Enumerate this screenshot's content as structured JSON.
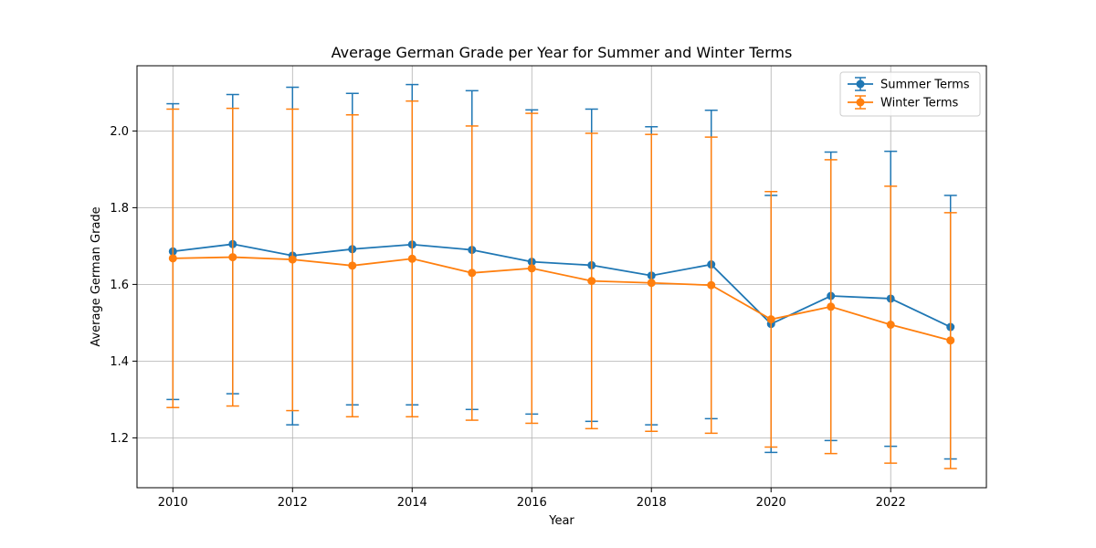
{
  "chart_data": {
    "type": "line",
    "title": "Average German Grade per Year for Summer and Winter Terms",
    "xlabel": "Year",
    "ylabel": "Average German Grade",
    "xlim": [
      2009.4,
      2023.6
    ],
    "ylim": [
      1.07,
      2.17
    ],
    "x_ticks": [
      2010,
      2012,
      2014,
      2016,
      2018,
      2020,
      2022
    ],
    "y_ticks": [
      1.2,
      1.4,
      1.6,
      1.8,
      2.0
    ],
    "y_tick_labels": [
      "1.2",
      "1.4",
      "1.6",
      "1.8",
      "2.0"
    ],
    "grid": true,
    "legend_position": "top-right",
    "x": [
      2010,
      2011,
      2012,
      2013,
      2014,
      2015,
      2016,
      2017,
      2018,
      2019,
      2020,
      2021,
      2022,
      2023
    ],
    "series": [
      {
        "name": "Summer Terms",
        "color": "#1f77b4",
        "marker": "circle",
        "values": [
          1.686,
          1.705,
          1.675,
          1.692,
          1.704,
          1.69,
          1.659,
          1.65,
          1.623,
          1.652,
          1.497,
          1.57,
          1.563,
          1.489
        ],
        "error_lower": [
          1.3,
          1.315,
          1.234,
          1.286,
          1.286,
          1.274,
          1.262,
          1.243,
          1.234,
          1.25,
          1.162,
          1.193,
          1.178,
          1.145
        ],
        "error_upper": [
          2.071,
          2.095,
          2.114,
          2.098,
          2.121,
          2.105,
          2.055,
          2.057,
          2.011,
          2.054,
          1.832,
          1.945,
          1.947,
          1.832
        ]
      },
      {
        "name": "Winter Terms",
        "color": "#ff7f0e",
        "marker": "circle",
        "values": [
          1.668,
          1.671,
          1.665,
          1.649,
          1.667,
          1.63,
          1.642,
          1.609,
          1.604,
          1.598,
          1.509,
          1.542,
          1.495,
          1.454
        ],
        "error_lower": [
          1.279,
          1.283,
          1.271,
          1.255,
          1.255,
          1.246,
          1.238,
          1.224,
          1.217,
          1.212,
          1.176,
          1.159,
          1.134,
          1.12
        ],
        "error_upper": [
          2.057,
          2.059,
          2.057,
          2.042,
          2.078,
          2.013,
          2.046,
          1.994,
          1.991,
          1.984,
          1.842,
          1.925,
          1.856,
          1.787
        ]
      }
    ]
  }
}
